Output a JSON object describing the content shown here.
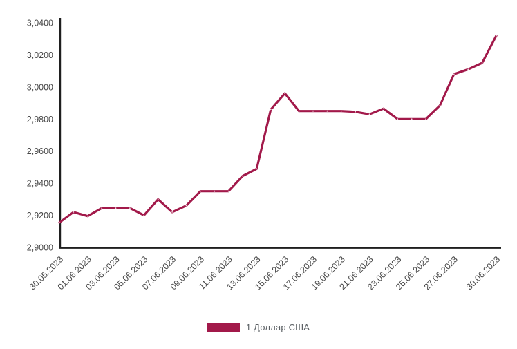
{
  "chart_data": {
    "type": "line",
    "title": "",
    "xlabel": "",
    "ylabel": "",
    "grid": false,
    "legend_position": "bottom",
    "ylim": [
      2.9,
      3.04
    ],
    "y_ticks": [
      2.9,
      2.92,
      2.94,
      2.96,
      2.98,
      3.0,
      3.02,
      3.04
    ],
    "y_tick_labels": [
      "2,9000",
      "2,9200",
      "2,9400",
      "2,9600",
      "2,9800",
      "3,0000",
      "3,0200",
      "3,0400"
    ],
    "x": [
      "30.05.2023",
      "31.05.2023",
      "01.06.2023",
      "02.06.2023",
      "03.06.2023",
      "04.06.2023",
      "05.06.2023",
      "06.06.2023",
      "07.06.2023",
      "08.06.2023",
      "09.06.2023",
      "10.06.2023",
      "11.06.2023",
      "12.06.2023",
      "13.06.2023",
      "14.06.2023",
      "15.06.2023",
      "16.06.2023",
      "17.06.2023",
      "18.06.2023",
      "19.06.2023",
      "20.06.2023",
      "21.06.2023",
      "22.06.2023",
      "23.06.2023",
      "24.06.2023",
      "25.06.2023",
      "26.06.2023",
      "27.06.2023",
      "28.06.2023",
      "29.06.2023",
      "30.06.2023"
    ],
    "x_tick_indices": [
      0,
      2,
      4,
      6,
      8,
      10,
      12,
      14,
      16,
      18,
      20,
      22,
      24,
      26,
      28,
      31
    ],
    "x_tick_labels": [
      "30.05.2023",
      "01.06.2023",
      "03.06.2023",
      "05.06.2023",
      "07.06.2023",
      "09.06.2023",
      "11.06.2023",
      "13.06.2023",
      "15.06.2023",
      "17.06.2023",
      "19.06.2023",
      "21.06.2023",
      "23.06.2023",
      "25.06.2023",
      "27.06.2023",
      "30.06.2023"
    ],
    "series": [
      {
        "name": "1 Доллар США",
        "color": "#A2194A",
        "values": [
          2.9155,
          2.922,
          2.9195,
          2.9245,
          2.9245,
          2.9245,
          2.92,
          2.93,
          2.922,
          2.926,
          2.935,
          2.935,
          2.935,
          2.9445,
          2.949,
          2.986,
          2.996,
          2.985,
          2.985,
          2.985,
          2.985,
          2.9845,
          2.983,
          2.9865,
          2.98,
          2.98,
          2.98,
          2.9885,
          3.008,
          3.011,
          3.015,
          3.032
        ]
      }
    ]
  },
  "colors": {
    "line": "#A2194A",
    "axis": "#1f1f1f",
    "tick_label": "#474747",
    "legend_text": "#5a5f63",
    "background": "#ffffff"
  }
}
